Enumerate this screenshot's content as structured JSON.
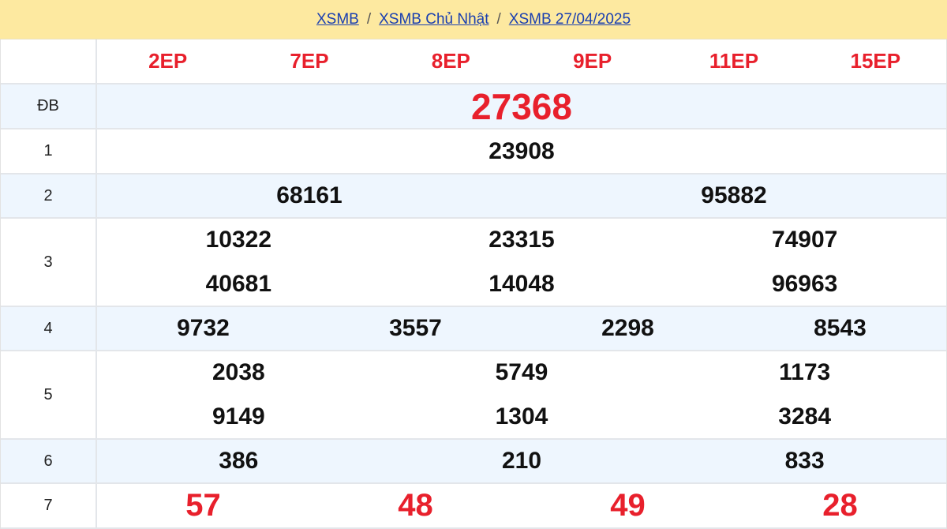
{
  "breadcrumb": [
    "XSMB",
    "XSMB Chủ Nhật",
    "XSMB 27/04/2025"
  ],
  "codes": [
    "2EP",
    "7EP",
    "8EP",
    "9EP",
    "11EP",
    "15EP"
  ],
  "prizes": [
    {
      "label": "ĐB",
      "cols": 1,
      "numbers": [
        "27368"
      ]
    },
    {
      "label": "1",
      "cols": 1,
      "numbers": [
        "23908"
      ]
    },
    {
      "label": "2",
      "cols": 2,
      "numbers": [
        "68161",
        "95882"
      ]
    },
    {
      "label": "3",
      "cols": 3,
      "numbers": [
        "10322",
        "23315",
        "74907",
        "40681",
        "14048",
        "96963"
      ]
    },
    {
      "label": "4",
      "cols": 4,
      "numbers": [
        "9732",
        "3557",
        "2298",
        "8543"
      ]
    },
    {
      "label": "5",
      "cols": 3,
      "numbers": [
        "2038",
        "5749",
        "1173",
        "9149",
        "1304",
        "3284"
      ]
    },
    {
      "label": "6",
      "cols": 3,
      "numbers": [
        "386",
        "210",
        "833"
      ]
    },
    {
      "label": "7",
      "cols": 4,
      "numbers": [
        "57",
        "48",
        "49",
        "28"
      ]
    }
  ],
  "colors": {
    "accent": "#e8202c",
    "header_bg": "#fde9a0",
    "link": "#1a3fb0",
    "alt_row": "#eef6fe"
  }
}
